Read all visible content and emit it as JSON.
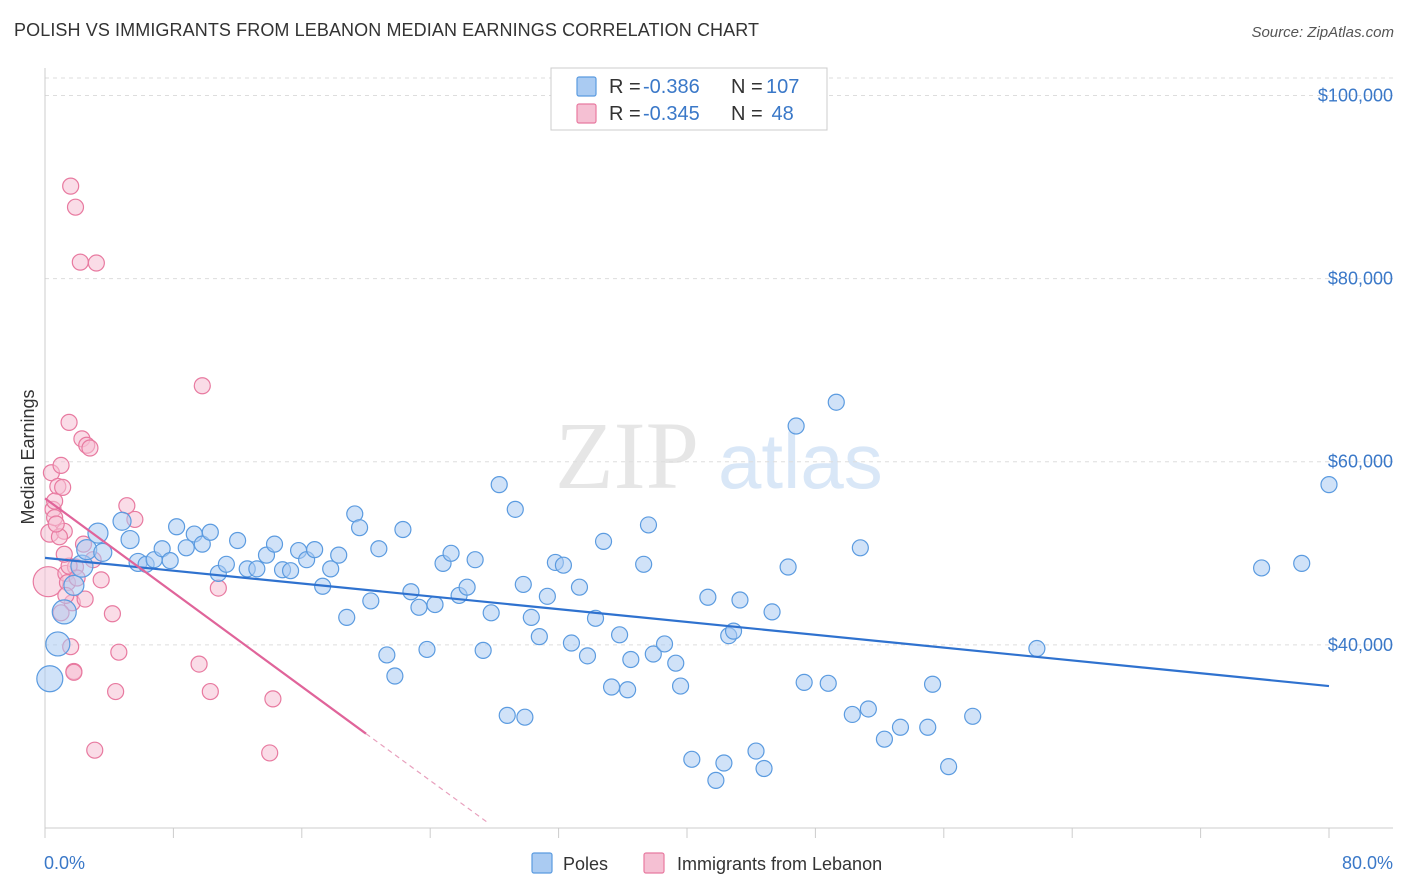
{
  "title": "POLISH VS IMMIGRANTS FROM LEBANON MEDIAN EARNINGS CORRELATION CHART",
  "source": "Source: ZipAtlas.com",
  "watermark": {
    "zip": "ZIP",
    "atlas": "atlas"
  },
  "colors": {
    "poles": "#5b9be0",
    "poles_fill": "#aacbf2",
    "lebanon": "#e87aa0",
    "lebanon_fill": "#f5c0d3",
    "tick_label": "#3a78c8",
    "grid": "#dddddd"
  },
  "legend": {
    "r_label": "R =",
    "n_label": "N =",
    "entries": [
      {
        "r": "-0.386",
        "n": "107"
      },
      {
        "r": "-0.345",
        "n": " 48"
      }
    ]
  },
  "bottom_legend": [
    "Poles",
    "Immigrants from Lebanon"
  ],
  "chart_data": {
    "type": "scatter",
    "title": "POLISH VS IMMIGRANTS FROM LEBANON MEDIAN EARNINGS CORRELATION CHART",
    "xlabel": "",
    "ylabel": "Median Earnings",
    "xlim": [
      0,
      80
    ],
    "ylim": [
      20000,
      103000
    ],
    "x_tick_labels": [
      "0.0%",
      "80.0%"
    ],
    "y_ticks": [
      40000,
      60000,
      80000,
      100000
    ],
    "y_tick_labels": [
      "$40,000",
      "$60,000",
      "$80,000",
      "$100,000"
    ],
    "grid": true,
    "legend_position": "top-center",
    "series": [
      {
        "name": "Poles",
        "r": -0.386,
        "n": 107,
        "trend": {
          "x0": 0,
          "y0": 49500,
          "x1": 80,
          "y1": 35500
        },
        "points": [
          [
            0.3,
            36300,
            13
          ],
          [
            0.8,
            40100,
            12
          ],
          [
            1.2,
            43600,
            12
          ],
          [
            1.8,
            46500,
            10
          ],
          [
            2.3,
            48600,
            11
          ],
          [
            2.6,
            50400,
            10
          ],
          [
            3.3,
            52200,
            10
          ],
          [
            3.6,
            50100,
            9
          ],
          [
            4.8,
            53500,
            9
          ],
          [
            5.3,
            51500,
            9
          ],
          [
            5.8,
            49000,
            9
          ],
          [
            6.3,
            48800,
            8
          ],
          [
            6.8,
            49300,
            8
          ],
          [
            7.3,
            50500,
            8
          ],
          [
            7.8,
            49200,
            8
          ],
          [
            8.2,
            52900,
            8
          ],
          [
            8.8,
            50600,
            8
          ],
          [
            9.3,
            52100,
            8
          ],
          [
            9.8,
            51000,
            8
          ],
          [
            10.3,
            52300,
            8
          ],
          [
            10.8,
            47800,
            8
          ],
          [
            11.3,
            48800,
            8
          ],
          [
            12.0,
            51400,
            8
          ],
          [
            12.6,
            48300,
            8
          ],
          [
            13.2,
            48300,
            8
          ],
          [
            13.8,
            49800,
            8
          ],
          [
            14.3,
            51000,
            8
          ],
          [
            14.8,
            48200,
            8
          ],
          [
            15.3,
            48100,
            8
          ],
          [
            15.8,
            50300,
            8
          ],
          [
            16.3,
            49300,
            8
          ],
          [
            16.8,
            50400,
            8
          ],
          [
            17.3,
            46400,
            8
          ],
          [
            17.8,
            48300,
            8
          ],
          [
            18.3,
            49800,
            8
          ],
          [
            18.8,
            43000,
            8
          ],
          [
            19.3,
            54300,
            8
          ],
          [
            19.6,
            52800,
            8
          ],
          [
            20.3,
            44800,
            8
          ],
          [
            20.8,
            50500,
            8
          ],
          [
            21.3,
            38900,
            8
          ],
          [
            21.8,
            36600,
            8
          ],
          [
            22.3,
            52600,
            8
          ],
          [
            22.8,
            45800,
            8
          ],
          [
            23.3,
            44100,
            8
          ],
          [
            23.8,
            39500,
            8
          ],
          [
            24.3,
            44400,
            8
          ],
          [
            24.8,
            48900,
            8
          ],
          [
            25.3,
            50000,
            8
          ],
          [
            25.8,
            45400,
            8
          ],
          [
            26.3,
            46300,
            8
          ],
          [
            26.8,
            49300,
            8
          ],
          [
            27.3,
            39400,
            8
          ],
          [
            27.8,
            43500,
            8
          ],
          [
            28.3,
            57500,
            8
          ],
          [
            28.8,
            32300,
            8
          ],
          [
            29.3,
            54800,
            8
          ],
          [
            29.8,
            46600,
            8
          ],
          [
            30.3,
            43000,
            8
          ],
          [
            30.8,
            40900,
            8
          ],
          [
            31.3,
            45300,
            8
          ],
          [
            31.8,
            49000,
            8
          ],
          [
            32.3,
            48700,
            8
          ],
          [
            32.8,
            40200,
            8
          ],
          [
            33.3,
            46300,
            8
          ],
          [
            33.8,
            38800,
            8
          ],
          [
            34.3,
            42900,
            8
          ],
          [
            34.8,
            51300,
            8
          ],
          [
            35.3,
            35400,
            8
          ],
          [
            35.8,
            41100,
            8
          ],
          [
            36.3,
            35100,
            8
          ],
          [
            36.5,
            38400,
            8
          ],
          [
            37.3,
            48800,
            8
          ],
          [
            37.6,
            53100,
            8
          ],
          [
            37.9,
            39000,
            8
          ],
          [
            38.6,
            40100,
            8
          ],
          [
            39.3,
            38000,
            8
          ],
          [
            39.6,
            35500,
            8
          ],
          [
            40.3,
            27500,
            8
          ],
          [
            41.3,
            45200,
            8
          ],
          [
            41.8,
            25200,
            8
          ],
          [
            42.3,
            27100,
            8
          ],
          [
            42.6,
            41000,
            8
          ],
          [
            42.9,
            41500,
            8
          ],
          [
            43.3,
            44900,
            8
          ],
          [
            44.3,
            28400,
            8
          ],
          [
            44.8,
            26500,
            8
          ],
          [
            45.3,
            43600,
            8
          ],
          [
            46.3,
            48500,
            8
          ],
          [
            46.8,
            63900,
            8
          ],
          [
            47.3,
            35900,
            8
          ],
          [
            48.8,
            35800,
            8
          ],
          [
            49.3,
            66500,
            8
          ],
          [
            50.3,
            32400,
            8
          ],
          [
            50.8,
            50600,
            8
          ],
          [
            51.3,
            33000,
            8
          ],
          [
            52.3,
            29700,
            8
          ],
          [
            53.3,
            31000,
            8
          ],
          [
            55.0,
            31000,
            8
          ],
          [
            55.3,
            35700,
            8
          ],
          [
            56.3,
            26700,
            8
          ],
          [
            57.8,
            32200,
            8
          ],
          [
            61.8,
            39600,
            8
          ],
          [
            75.8,
            48400,
            8
          ],
          [
            78.3,
            48900,
            8
          ],
          [
            80.0,
            57500,
            8
          ],
          [
            29.9,
            32100,
            8
          ]
        ]
      },
      {
        "name": "Immigrants from Lebanon",
        "r": -0.345,
        "n": 48,
        "trend": {
          "x0": 0,
          "y0": 56000,
          "x1": 20,
          "y1": 30300,
          "dash_x1": 27.5,
          "dash_y1": 20700
        },
        "points": [
          [
            0.2,
            46900,
            15
          ],
          [
            0.3,
            52200,
            9
          ],
          [
            0.4,
            58800,
            8
          ],
          [
            0.5,
            54800,
            8
          ],
          [
            0.6,
            53900,
            8
          ],
          [
            0.8,
            57300,
            8
          ],
          [
            1.0,
            59600,
            8
          ],
          [
            1.1,
            57200,
            8
          ],
          [
            1.2,
            52400,
            8
          ],
          [
            1.3,
            47800,
            8
          ],
          [
            1.4,
            46800,
            8
          ],
          [
            1.5,
            64300,
            8
          ],
          [
            1.6,
            39800,
            8
          ],
          [
            1.7,
            44600,
            8
          ],
          [
            1.8,
            37100,
            8
          ],
          [
            1.8,
            37000,
            8
          ],
          [
            1.6,
            90100,
            8
          ],
          [
            1.9,
            87800,
            8
          ],
          [
            2.2,
            81800,
            8
          ],
          [
            3.2,
            81700,
            8
          ],
          [
            2.3,
            62500,
            8
          ],
          [
            2.6,
            61800,
            8
          ],
          [
            2.8,
            61500,
            8
          ],
          [
            1.9,
            48500,
            8
          ],
          [
            1.3,
            45400,
            8
          ],
          [
            1.0,
            43500,
            8
          ],
          [
            2.4,
            51000,
            8
          ],
          [
            3.0,
            49300,
            8
          ],
          [
            3.5,
            47100,
            8
          ],
          [
            4.2,
            43400,
            8
          ],
          [
            4.4,
            34900,
            8
          ],
          [
            4.6,
            39200,
            8
          ],
          [
            3.1,
            28500,
            8
          ],
          [
            5.1,
            55200,
            8
          ],
          [
            5.6,
            53700,
            8
          ],
          [
            9.8,
            68300,
            8
          ],
          [
            9.6,
            37900,
            8
          ],
          [
            10.3,
            34900,
            8
          ],
          [
            10.8,
            46200,
            8
          ],
          [
            14.2,
            34100,
            8
          ],
          [
            14.0,
            28200,
            8
          ],
          [
            0.6,
            55700,
            8
          ],
          [
            0.9,
            51800,
            8
          ],
          [
            1.5,
            48600,
            8
          ],
          [
            2.0,
            47300,
            8
          ],
          [
            0.7,
            53200,
            8
          ],
          [
            1.2,
            49900,
            8
          ],
          [
            2.5,
            45000,
            8
          ]
        ]
      }
    ]
  }
}
